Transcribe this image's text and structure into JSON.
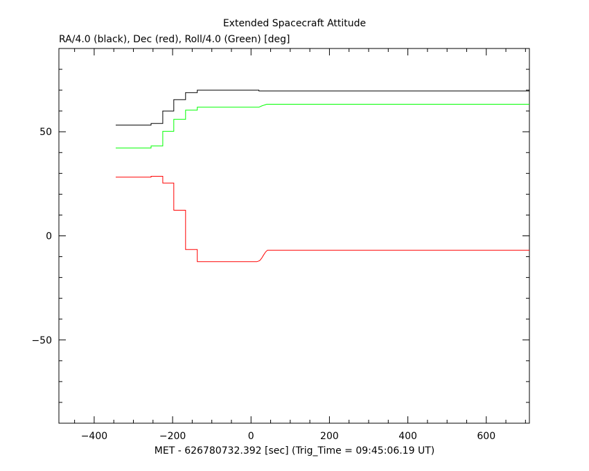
{
  "chart_data": {
    "type": "line",
    "title": "Extended Spacecraft Attitude",
    "ylabel": "RA/4.0 (black), Dec (red), Roll/4.0 (Green) [deg]",
    "xlabel": "MET - 626780732.392 [sec] (Trig_Time = 09:45:06.19 UT)",
    "xlim": [
      -490,
      710
    ],
    "ylim": [
      -90,
      90
    ],
    "x_ticks": [
      -400,
      -200,
      0,
      200,
      400,
      600
    ],
    "x_tick_labels": [
      "−400",
      "−200",
      "0",
      "200",
      "400",
      "600"
    ],
    "y_ticks": [
      -50,
      0,
      50
    ],
    "y_tick_labels": [
      "−50",
      "0",
      "50"
    ],
    "x_minor_step": 50,
    "y_minor_step": 10,
    "grid": false,
    "series": [
      {
        "color": "#000000",
        "points": [
          [
            -345,
            53.2
          ],
          [
            -255,
            53.2
          ],
          [
            -255,
            54.0
          ],
          [
            -225,
            54.0
          ],
          [
            -225,
            60.0
          ],
          [
            -197,
            60.0
          ],
          [
            -197,
            65.4
          ],
          [
            -167,
            65.4
          ],
          [
            -167,
            68.8
          ],
          [
            -137,
            68.8
          ],
          [
            -137,
            70.0
          ],
          [
            20,
            70.0
          ],
          [
            20,
            69.6
          ],
          [
            40,
            69.6
          ],
          [
            710,
            69.6
          ]
        ]
      },
      {
        "color": "#ff0000",
        "points": [
          [
            -345,
            28.2
          ],
          [
            -255,
            28.2
          ],
          [
            -255,
            28.6
          ],
          [
            -225,
            28.6
          ],
          [
            -225,
            25.4
          ],
          [
            -197,
            25.4
          ],
          [
            -197,
            12.3
          ],
          [
            -167,
            12.3
          ],
          [
            -167,
            -6.6
          ],
          [
            -137,
            -6.6
          ],
          [
            -137,
            -12.4
          ],
          [
            15,
            -12.4
          ],
          [
            22,
            -11.9
          ],
          [
            27,
            -10.8
          ],
          [
            32,
            -9.2
          ],
          [
            37,
            -7.8
          ],
          [
            42,
            -6.9
          ],
          [
            710,
            -6.9
          ]
        ]
      },
      {
        "color": "#00ff00",
        "points": [
          [
            -345,
            42.2
          ],
          [
            -255,
            42.2
          ],
          [
            -255,
            43.2
          ],
          [
            -225,
            43.2
          ],
          [
            -225,
            50.2
          ],
          [
            -197,
            50.2
          ],
          [
            -197,
            56.0
          ],
          [
            -167,
            56.0
          ],
          [
            -167,
            60.4
          ],
          [
            -137,
            60.4
          ],
          [
            -137,
            61.8
          ],
          [
            20,
            61.8
          ],
          [
            27,
            62.4
          ],
          [
            35,
            62.9
          ],
          [
            40,
            63.2
          ],
          [
            710,
            63.2
          ]
        ]
      }
    ]
  }
}
